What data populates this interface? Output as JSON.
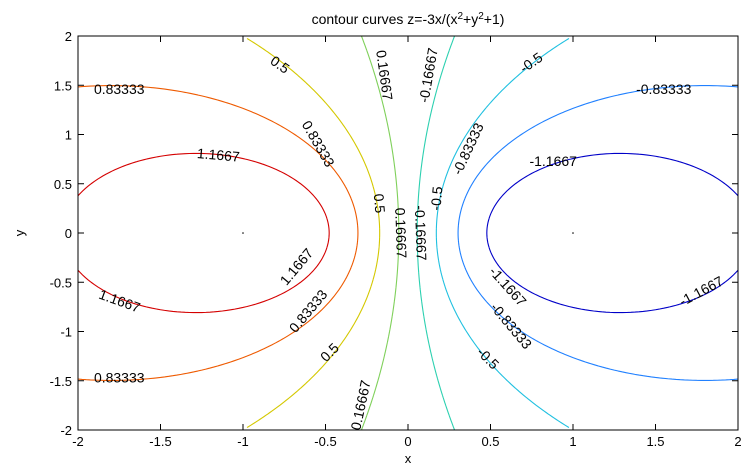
{
  "chart_data": {
    "type": "contour",
    "title_main": "contour curves z=-3x/(x",
    "title_sup1": "2",
    "title_mid": "+y",
    "title_sup2": "2",
    "title_end": "+1)",
    "xlabel": "x",
    "ylabel": "y",
    "xlim": [
      -2,
      2
    ],
    "ylim": [
      -2,
      2
    ],
    "xticks": [
      -2,
      -1.5,
      -1,
      -0.5,
      0,
      0.5,
      1,
      1.5,
      2
    ],
    "yticks": [
      -2,
      -1.5,
      -1,
      -0.5,
      0,
      0.5,
      1,
      1.5,
      2
    ],
    "xtick_labels": [
      "-2",
      "-1.5",
      "-1",
      "-0.5",
      "0",
      "0.5",
      "1",
      "1.5",
      "2"
    ],
    "ytick_labels": [
      "-2",
      "-1.5",
      "-1",
      "-0.5",
      "0",
      "0.5",
      "1",
      "1.5",
      "2"
    ],
    "grid": false,
    "levels": [
      {
        "value": 1.1667,
        "label": "1.1667",
        "color": "#d40000"
      },
      {
        "value": 0.83333,
        "label": "0.83333",
        "color": "#ee5a00"
      },
      {
        "value": 0.5,
        "label": "0.5",
        "color": "#d4c800"
      },
      {
        "value": 0.16667,
        "label": "0.16667",
        "color": "#7fd05a"
      },
      {
        "value": -0.16667,
        "label": "-0.16667",
        "color": "#2cd0b0"
      },
      {
        "value": -0.5,
        "label": "-0.5",
        "color": "#20c0e0"
      },
      {
        "value": -0.83333,
        "label": "-0.83333",
        "color": "#2080ff"
      },
      {
        "value": -1.1667,
        "label": "-1.1667",
        "color": "#0000c8"
      }
    ],
    "contour_labels": [
      {
        "text": "0.83333",
        "x": -1.75,
        "y": 1.45,
        "angle": 0
      },
      {
        "text": "1.1667",
        "x": -1.15,
        "y": 0.78,
        "angle": 5
      },
      {
        "text": "1.1667",
        "x": -1.75,
        "y": -0.7,
        "angle": 20
      },
      {
        "text": "0.83333",
        "x": -1.75,
        "y": -1.48,
        "angle": 0
      },
      {
        "text": "0.5",
        "x": -0.78,
        "y": 1.7,
        "angle": 35
      },
      {
        "text": "0.83333",
        "x": -0.55,
        "y": 0.9,
        "angle": 60
      },
      {
        "text": "0.5",
        "x": -0.18,
        "y": 0.3,
        "angle": 85
      },
      {
        "text": "1.1667",
        "x": -0.67,
        "y": -0.35,
        "angle": -50
      },
      {
        "text": "0.83333",
        "x": -0.6,
        "y": -0.8,
        "angle": -50
      },
      {
        "text": "0.5",
        "x": -0.47,
        "y": -1.22,
        "angle": -45
      },
      {
        "text": "0.16667",
        "x": -0.15,
        "y": 1.6,
        "angle": 82
      },
      {
        "text": "0.16667",
        "x": -0.05,
        "y": 0.0,
        "angle": 88
      },
      {
        "text": "0.16667",
        "x": -0.28,
        "y": -1.75,
        "angle": -78
      },
      {
        "text": "-0.16667",
        "x": 0.13,
        "y": 1.6,
        "angle": -80
      },
      {
        "text": "-0.16667",
        "x": 0.07,
        "y": 0.0,
        "angle": 88
      },
      {
        "text": "-0.5",
        "x": 0.18,
        "y": 0.35,
        "angle": -85
      },
      {
        "text": "-0.83333",
        "x": 0.37,
        "y": 0.85,
        "angle": -65
      },
      {
        "text": "-0.5",
        "x": 0.75,
        "y": 1.72,
        "angle": -35
      },
      {
        "text": "-0.83333",
        "x": 1.55,
        "y": 1.45,
        "angle": 0
      },
      {
        "text": "-1.1667",
        "x": 0.88,
        "y": 0.72,
        "angle": 0
      },
      {
        "text": "-1.1667",
        "x": 0.6,
        "y": -0.55,
        "angle": 48
      },
      {
        "text": "-0.83333",
        "x": 0.62,
        "y": -0.95,
        "angle": 50
      },
      {
        "text": "-0.5",
        "x": 0.48,
        "y": -1.28,
        "angle": 45
      },
      {
        "text": "-1.1667",
        "x": 1.78,
        "y": -0.6,
        "angle": -28
      }
    ]
  }
}
